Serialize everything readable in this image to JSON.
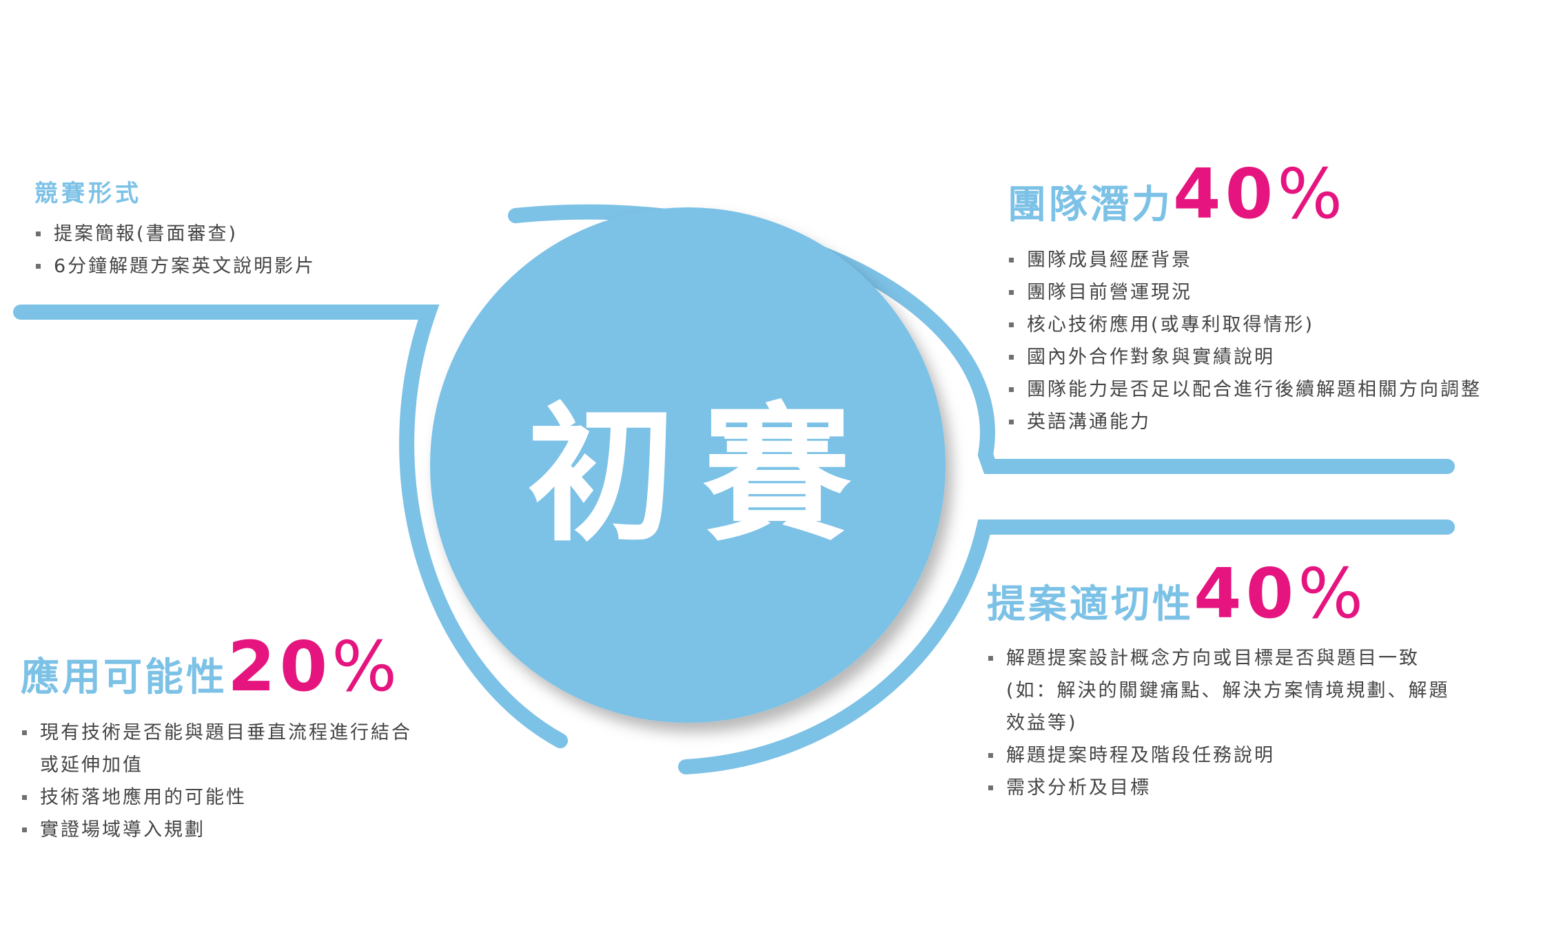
{
  "colors": {
    "arc": "#7cc1e6",
    "circle": "#7cc1e6",
    "heading": "#7cc1e6",
    "percent": "#e5147f",
    "text": "#444444",
    "bullet": "#6f6f6f"
  },
  "center_title": "初賽",
  "format": {
    "title": "競賽形式",
    "items": [
      "提案簡報(書面審查)",
      "6分鐘解題方案英文說明影片"
    ]
  },
  "team": {
    "title": "團隊潛力",
    "percent": "40",
    "percent_sign": "%",
    "items": [
      "團隊成員經歷背景",
      "團隊目前營運現況",
      "核心技術應用(或專利取得情形)",
      "國內外合作對象與實績說明",
      "團隊能力是否足以配合進行後續解題相關方向調整",
      "英語溝通能力"
    ]
  },
  "fit": {
    "title": "提案適切性",
    "percent": "40",
    "percent_sign": "%",
    "item1": [
      "解題提案設計概念方向或目標是否與題目一致",
      "(如：解決的關鍵痛點、解決方案情境規劃、解題",
      "效益等)"
    ],
    "item2": "解題提案時程及階段任務說明",
    "item3": "需求分析及目標"
  },
  "app": {
    "title": "應用可能性",
    "percent": "20",
    "percent_sign": "%",
    "item1": [
      "現有技術是否能與題目垂直流程進行結合",
      "或延伸加值"
    ],
    "item2": "技術落地應用的可能性",
    "item3": "實證場域導入規劃"
  }
}
